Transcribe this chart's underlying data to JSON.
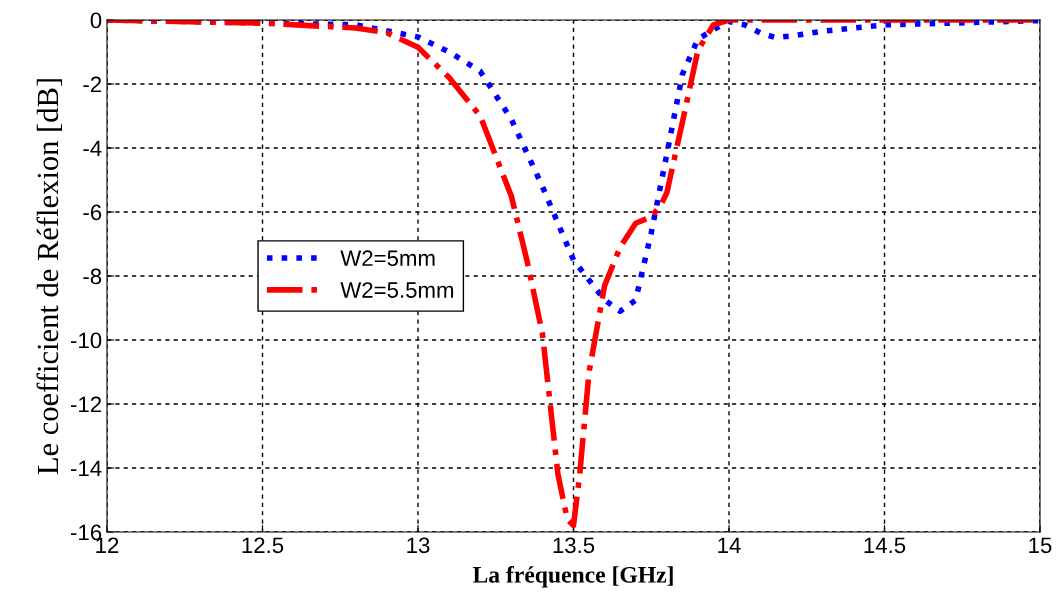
{
  "chart_data": {
    "type": "line",
    "xlabel": "La fréquence [GHz]",
    "ylabel": "Le coefficient de Réflexion [dB]",
    "xlim": [
      12,
      15
    ],
    "xticks": [
      12,
      12.5,
      13,
      13.5,
      14,
      14.5,
      15
    ],
    "ylim": [
      -16,
      0
    ],
    "yticks": [
      -16,
      -14,
      -12,
      -10,
      -8,
      -6,
      -4,
      -2,
      0
    ],
    "grid": true,
    "legend": "left",
    "series": [
      {
        "name": "W2=5mm",
        "color": "#0000ff",
        "line_style": "dotted",
        "x": [
          12,
          12.8,
          13.0,
          13.1,
          13.2,
          13.3,
          13.4,
          13.5,
          13.6,
          13.65,
          13.7,
          13.75,
          13.8,
          13.85,
          13.9,
          13.95,
          14.0,
          14.05,
          14.1,
          14.15,
          14.2,
          14.3,
          14.4,
          14.5,
          14.7,
          15
        ],
        "values": [
          0,
          -0.15,
          -0.53,
          -1.0,
          -1.6,
          -3.1,
          -5.2,
          -7.5,
          -8.75,
          -9.1,
          -8.75,
          -6.65,
          -4.2,
          -1.7,
          -0.6,
          -0.3,
          -0.05,
          -0.15,
          -0.4,
          -0.55,
          -0.5,
          -0.35,
          -0.25,
          -0.15,
          -0.1,
          -0.02
        ]
      },
      {
        "name": "W2=5.5mm",
        "color": "#ff0000",
        "line_style": "dashdot",
        "x": [
          12,
          12.5,
          12.8,
          12.9,
          13.0,
          13.1,
          13.2,
          13.3,
          13.35,
          13.4,
          13.45,
          13.48,
          13.5,
          13.52,
          13.55,
          13.6,
          13.65,
          13.7,
          13.75,
          13.78,
          13.8,
          13.85,
          13.9,
          13.95,
          14.0,
          14.5,
          15
        ],
        "values": [
          0,
          -0.1,
          -0.25,
          -0.4,
          -0.85,
          -1.8,
          -3.0,
          -5.5,
          -7.5,
          -9.8,
          -14.2,
          -15.6,
          -15.8,
          -14.2,
          -11.0,
          -8.3,
          -7.1,
          -6.35,
          -6.15,
          -5.8,
          -5.4,
          -3.2,
          -0.95,
          -0.15,
          0,
          0,
          0
        ]
      }
    ]
  }
}
